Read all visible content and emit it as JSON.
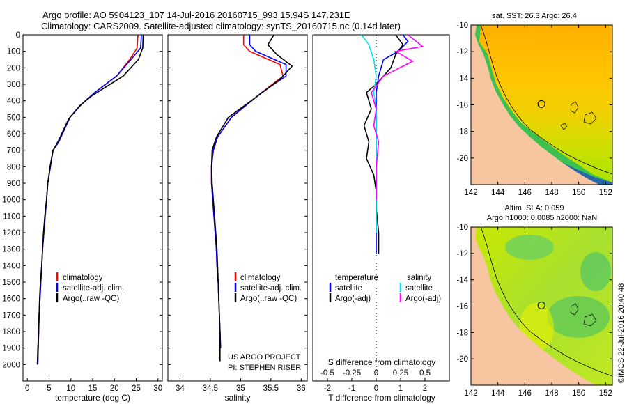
{
  "header": {
    "line1": "Argo profile: AO 5904123_107 14-Jul-2016 20160715_993 15.94S 147.231E",
    "line2": "Climatology: CARS2009. Satellite-adjusted climatology: synTS_20160715.nc (0.14d later)"
  },
  "colors": {
    "climatology": "#ff0000",
    "satellite": "#0000ff",
    "argo": "#000000",
    "sal_satellite": "#00e5ee",
    "sal_argo": "#ff00ff",
    "land": "#f7c59f"
  },
  "chart_data": [
    {
      "id": "temperature",
      "type": "line",
      "xlabel": "temperature (deg C)",
      "xlim": [
        -1,
        31
      ],
      "xticks": [
        0,
        5,
        10,
        15,
        20,
        25,
        30
      ],
      "ylim": [
        0,
        2100
      ],
      "yticks": [
        0,
        100,
        200,
        300,
        400,
        500,
        600,
        700,
        800,
        900,
        1000,
        1100,
        1200,
        1300,
        1400,
        1500,
        1600,
        1700,
        1800,
        1900,
        2000
      ],
      "series": [
        {
          "name": "climatology",
          "color": "#ff0000",
          "x": [
            25.4,
            25.2,
            23.5,
            20.5,
            15.5,
            12.5,
            9.8,
            7.2,
            5.9,
            5.3,
            4.7,
            4.4,
            4.1,
            3.8,
            3.5,
            3.3,
            3.1,
            2.9,
            2.7,
            2.6,
            2.5,
            2.4
          ],
          "y": [
            0,
            80,
            150,
            250,
            350,
            420,
            500,
            650,
            700,
            800,
            900,
            1000,
            1100,
            1200,
            1300,
            1400,
            1500,
            1600,
            1700,
            1800,
            1900,
            2000
          ]
        },
        {
          "name": "satellite-adj. clim.",
          "color": "#0000ff",
          "x": [
            26.2,
            26.0,
            23.8,
            20.5,
            15.5,
            12.5,
            9.8,
            7.2,
            5.9,
            5.3,
            4.7,
            4.4,
            4.1,
            3.8,
            3.5,
            3.3,
            3.1,
            2.9,
            2.7,
            2.6,
            2.5,
            2.4
          ],
          "y": [
            0,
            80,
            150,
            250,
            350,
            420,
            500,
            650,
            700,
            800,
            900,
            1000,
            1100,
            1200,
            1300,
            1400,
            1500,
            1600,
            1700,
            1800,
            1900,
            2000
          ]
        },
        {
          "name": "Argo(..raw -QC)",
          "color": "#000000",
          "x": [
            26.6,
            26.5,
            25.5,
            22.0,
            14.8,
            12.0,
            9.5,
            7.0,
            5.9,
            5.2,
            4.7,
            4.4,
            4.0,
            3.7,
            3.5,
            3.3,
            3.0,
            2.8,
            2.7,
            2.6,
            2.4,
            2.3
          ],
          "y": [
            0,
            80,
            150,
            250,
            370,
            430,
            510,
            650,
            700,
            800,
            900,
            1000,
            1100,
            1200,
            1300,
            1400,
            1500,
            1600,
            1700,
            1800,
            1900,
            2000
          ]
        }
      ],
      "legend": [
        "climatology",
        "satellite-adj. clim.",
        "Argo(..raw -QC)"
      ]
    },
    {
      "id": "salinity",
      "type": "line",
      "xlabel": "salinity",
      "xlim": [
        33.8,
        36.1
      ],
      "xticks": [
        34,
        34.5,
        35,
        35.5,
        36
      ],
      "ylim": [
        0,
        2100
      ],
      "series": [
        {
          "name": "climatology",
          "color": "#ff0000",
          "x": [
            35.05,
            35.05,
            35.15,
            35.65,
            35.7,
            35.35,
            34.85,
            34.62,
            34.55,
            34.52,
            34.52,
            34.54,
            34.56,
            34.58,
            34.6,
            34.61,
            34.63,
            34.64,
            34.65,
            34.66,
            34.67
          ],
          "y": [
            0,
            60,
            100,
            180,
            250,
            350,
            500,
            620,
            700,
            800,
            900,
            1000,
            1100,
            1200,
            1300,
            1400,
            1500,
            1600,
            1700,
            1800,
            1900
          ]
        },
        {
          "name": "satellite-adj. clim.",
          "color": "#0000ff",
          "x": [
            35.15,
            35.15,
            35.25,
            35.75,
            35.75,
            35.35,
            34.85,
            34.62,
            34.55,
            34.52,
            34.52,
            34.54,
            34.56,
            34.58,
            34.6,
            34.61,
            34.63,
            34.64,
            34.65,
            34.66,
            34.67
          ],
          "y": [
            0,
            60,
            100,
            180,
            250,
            350,
            500,
            620,
            700,
            800,
            900,
            1000,
            1100,
            1200,
            1300,
            1400,
            1500,
            1600,
            1700,
            1800,
            1900
          ]
        },
        {
          "name": "Argo(..raw -QC)",
          "color": "#000000",
          "x": [
            35.55,
            35.45,
            35.6,
            35.85,
            35.65,
            35.25,
            34.8,
            34.6,
            34.53,
            34.52,
            34.53,
            34.55,
            34.57,
            34.59,
            34.61,
            34.62,
            34.63,
            34.64,
            34.65,
            34.66,
            34.66
          ],
          "y": [
            0,
            60,
            120,
            190,
            270,
            380,
            500,
            620,
            700,
            800,
            900,
            1000,
            1100,
            1200,
            1300,
            1400,
            1500,
            1600,
            1700,
            1800,
            1980
          ]
        }
      ],
      "legend": [
        "climatology",
        "satellite-adj. clim.",
        "Argo(..raw -QC)"
      ],
      "annotation": [
        "US ARGO PROJECT",
        "PI: STEPHEN RISER"
      ]
    },
    {
      "id": "differences",
      "type": "line",
      "xlabel_top": "S difference from climatology",
      "xlabel": "T difference from climatology",
      "xlim": [
        -2.6,
        3.0
      ],
      "xticks": [
        -2,
        -1,
        0,
        1,
        2
      ],
      "xticklabels_top": [
        "-0.5",
        "-0.25",
        "0",
        "0.25",
        "0.5"
      ],
      "xticks_top_t": [
        -2,
        -1,
        0,
        1,
        2
      ],
      "ylim": [
        0,
        2100
      ],
      "ymax_data": 1330,
      "series": [
        {
          "name": "temperature satellite",
          "color": "#0000ff",
          "x": [
            1.1,
            1.3,
            0.9,
            0.3,
            0.1,
            0.0,
            0.0,
            0.0,
            0.0,
            0.0,
            0.0,
            0.0,
            0.0,
            0.0,
            0.0
          ],
          "y": [
            0,
            40,
            100,
            150,
            250,
            350,
            450,
            550,
            650,
            750,
            850,
            950,
            1050,
            1200,
            1330
          ]
        },
        {
          "name": "temperature Argo(-adj)",
          "color": "#000000",
          "x": [
            0.8,
            1.1,
            0.8,
            0.6,
            0.0,
            -0.4,
            -0.2,
            -0.5,
            -0.3,
            -0.4,
            -0.1,
            0.0,
            0.0,
            0.1,
            0.1
          ],
          "y": [
            0,
            60,
            120,
            200,
            300,
            350,
            450,
            550,
            650,
            750,
            850,
            950,
            1050,
            1200,
            1330
          ]
        },
        {
          "name": "salinity satellite",
          "color": "#00e5ee",
          "x": [
            -0.6,
            -0.3,
            -0.1,
            0.0,
            -0.1,
            0.0,
            0.0,
            0.0,
            0.0,
            0.0,
            0.0,
            0.0,
            0.0
          ],
          "y": [
            0,
            60,
            150,
            250,
            350,
            450,
            550,
            650,
            750,
            850,
            950,
            1050,
            1200
          ]
        },
        {
          "name": "salinity Argo(-adj)",
          "color": "#ff00ff",
          "x": [
            1.3,
            1.9,
            0.8,
            1.5,
            0.3,
            -0.2,
            0.0,
            -0.1,
            0.1,
            0.0,
            0.0
          ],
          "y": [
            0,
            70,
            100,
            160,
            250,
            350,
            450,
            550,
            650,
            800,
            1000
          ]
        }
      ],
      "legend": {
        "temperature_title": "temperature",
        "salinity_title": "salinity",
        "t_satellite": "satellite",
        "t_argo": "Argo(-adj)",
        "s_satellite": "satellite",
        "s_argo": "Argo(-adj)"
      }
    },
    {
      "id": "sst_map",
      "type": "heatmap",
      "title": "sat. SST: 26.3 Argo: 26.4",
      "xlim": [
        142,
        152.5
      ],
      "ylim": [
        -22,
        -10
      ],
      "xticks": [
        142,
        144,
        146,
        148,
        150,
        152
      ],
      "yticks": [
        -10,
        -12,
        -14,
        -16,
        -18,
        -20
      ],
      "argo_position": {
        "lon": 147.231,
        "lat": -15.94
      }
    },
    {
      "id": "sla_map",
      "type": "heatmap",
      "title_line1": "Altim. SLA: 0.059",
      "title_line2": "Argo h1000: 0.0085 h2000: NaN",
      "xlim": [
        142,
        152.5
      ],
      "ylim": [
        -22,
        -10
      ],
      "xticks": [
        142,
        144,
        146,
        148,
        150,
        152
      ],
      "yticks": [
        -10,
        -12,
        -14,
        -16,
        -18,
        -20
      ],
      "argo_position": {
        "lon": 147.231,
        "lat": -15.94
      }
    }
  ],
  "credit": "©IMOS 22-Jul-2016 20:40:48"
}
